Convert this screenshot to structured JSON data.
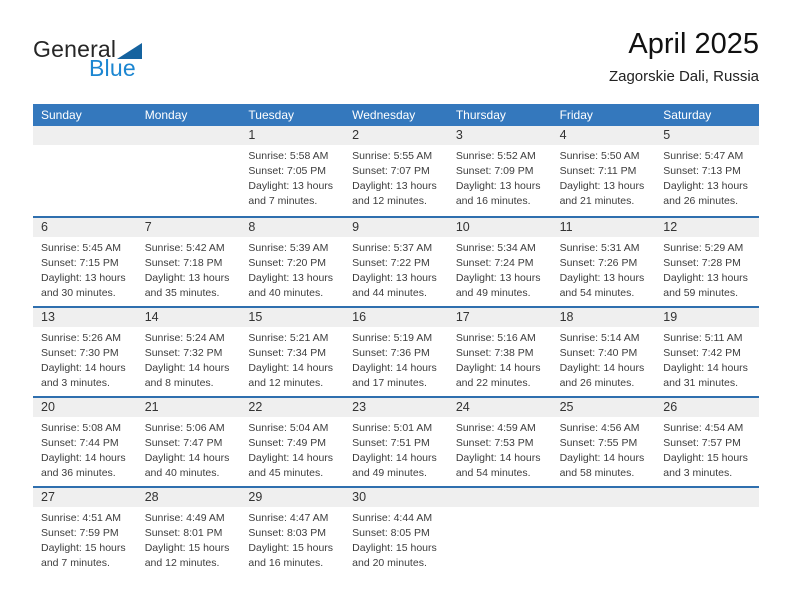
{
  "logo": {
    "general": "General",
    "blue": "Blue"
  },
  "header": {
    "title": "April 2025",
    "subtitle": "Zagorskie Dali, Russia"
  },
  "weekday_headers": [
    "Sunday",
    "Monday",
    "Tuesday",
    "Wednesday",
    "Thursday",
    "Friday",
    "Saturday"
  ],
  "colors": {
    "header_bg": "#3478bd",
    "row_separator": "#2f6fae",
    "day_band_bg": "#efefef",
    "logo_blue": "#1c86d1",
    "logo_triangle": "#15639f"
  },
  "weeks": [
    [
      {
        "day": "",
        "lines": []
      },
      {
        "day": "",
        "lines": []
      },
      {
        "day": "1",
        "lines": [
          "Sunrise: 5:58 AM",
          "Sunset: 7:05 PM",
          "Daylight: 13 hours",
          "and 7 minutes."
        ]
      },
      {
        "day": "2",
        "lines": [
          "Sunrise: 5:55 AM",
          "Sunset: 7:07 PM",
          "Daylight: 13 hours",
          "and 12 minutes."
        ]
      },
      {
        "day": "3",
        "lines": [
          "Sunrise: 5:52 AM",
          "Sunset: 7:09 PM",
          "Daylight: 13 hours",
          "and 16 minutes."
        ]
      },
      {
        "day": "4",
        "lines": [
          "Sunrise: 5:50 AM",
          "Sunset: 7:11 PM",
          "Daylight: 13 hours",
          "and 21 minutes."
        ]
      },
      {
        "day": "5",
        "lines": [
          "Sunrise: 5:47 AM",
          "Sunset: 7:13 PM",
          "Daylight: 13 hours",
          "and 26 minutes."
        ]
      }
    ],
    [
      {
        "day": "6",
        "lines": [
          "Sunrise: 5:45 AM",
          "Sunset: 7:15 PM",
          "Daylight: 13 hours",
          "and 30 minutes."
        ]
      },
      {
        "day": "7",
        "lines": [
          "Sunrise: 5:42 AM",
          "Sunset: 7:18 PM",
          "Daylight: 13 hours",
          "and 35 minutes."
        ]
      },
      {
        "day": "8",
        "lines": [
          "Sunrise: 5:39 AM",
          "Sunset: 7:20 PM",
          "Daylight: 13 hours",
          "and 40 minutes."
        ]
      },
      {
        "day": "9",
        "lines": [
          "Sunrise: 5:37 AM",
          "Sunset: 7:22 PM",
          "Daylight: 13 hours",
          "and 44 minutes."
        ]
      },
      {
        "day": "10",
        "lines": [
          "Sunrise: 5:34 AM",
          "Sunset: 7:24 PM",
          "Daylight: 13 hours",
          "and 49 minutes."
        ]
      },
      {
        "day": "11",
        "lines": [
          "Sunrise: 5:31 AM",
          "Sunset: 7:26 PM",
          "Daylight: 13 hours",
          "and 54 minutes."
        ]
      },
      {
        "day": "12",
        "lines": [
          "Sunrise: 5:29 AM",
          "Sunset: 7:28 PM",
          "Daylight: 13 hours",
          "and 59 minutes."
        ]
      }
    ],
    [
      {
        "day": "13",
        "lines": [
          "Sunrise: 5:26 AM",
          "Sunset: 7:30 PM",
          "Daylight: 14 hours",
          "and 3 minutes."
        ]
      },
      {
        "day": "14",
        "lines": [
          "Sunrise: 5:24 AM",
          "Sunset: 7:32 PM",
          "Daylight: 14 hours",
          "and 8 minutes."
        ]
      },
      {
        "day": "15",
        "lines": [
          "Sunrise: 5:21 AM",
          "Sunset: 7:34 PM",
          "Daylight: 14 hours",
          "and 12 minutes."
        ]
      },
      {
        "day": "16",
        "lines": [
          "Sunrise: 5:19 AM",
          "Sunset: 7:36 PM",
          "Daylight: 14 hours",
          "and 17 minutes."
        ]
      },
      {
        "day": "17",
        "lines": [
          "Sunrise: 5:16 AM",
          "Sunset: 7:38 PM",
          "Daylight: 14 hours",
          "and 22 minutes."
        ]
      },
      {
        "day": "18",
        "lines": [
          "Sunrise: 5:14 AM",
          "Sunset: 7:40 PM",
          "Daylight: 14 hours",
          "and 26 minutes."
        ]
      },
      {
        "day": "19",
        "lines": [
          "Sunrise: 5:11 AM",
          "Sunset: 7:42 PM",
          "Daylight: 14 hours",
          "and 31 minutes."
        ]
      }
    ],
    [
      {
        "day": "20",
        "lines": [
          "Sunrise: 5:08 AM",
          "Sunset: 7:44 PM",
          "Daylight: 14 hours",
          "and 36 minutes."
        ]
      },
      {
        "day": "21",
        "lines": [
          "Sunrise: 5:06 AM",
          "Sunset: 7:47 PM",
          "Daylight: 14 hours",
          "and 40 minutes."
        ]
      },
      {
        "day": "22",
        "lines": [
          "Sunrise: 5:04 AM",
          "Sunset: 7:49 PM",
          "Daylight: 14 hours",
          "and 45 minutes."
        ]
      },
      {
        "day": "23",
        "lines": [
          "Sunrise: 5:01 AM",
          "Sunset: 7:51 PM",
          "Daylight: 14 hours",
          "and 49 minutes."
        ]
      },
      {
        "day": "24",
        "lines": [
          "Sunrise: 4:59 AM",
          "Sunset: 7:53 PM",
          "Daylight: 14 hours",
          "and 54 minutes."
        ]
      },
      {
        "day": "25",
        "lines": [
          "Sunrise: 4:56 AM",
          "Sunset: 7:55 PM",
          "Daylight: 14 hours",
          "and 58 minutes."
        ]
      },
      {
        "day": "26",
        "lines": [
          "Sunrise: 4:54 AM",
          "Sunset: 7:57 PM",
          "Daylight: 15 hours",
          "and 3 minutes."
        ]
      }
    ],
    [
      {
        "day": "27",
        "lines": [
          "Sunrise: 4:51 AM",
          "Sunset: 7:59 PM",
          "Daylight: 15 hours",
          "and 7 minutes."
        ]
      },
      {
        "day": "28",
        "lines": [
          "Sunrise: 4:49 AM",
          "Sunset: 8:01 PM",
          "Daylight: 15 hours",
          "and 12 minutes."
        ]
      },
      {
        "day": "29",
        "lines": [
          "Sunrise: 4:47 AM",
          "Sunset: 8:03 PM",
          "Daylight: 15 hours",
          "and 16 minutes."
        ]
      },
      {
        "day": "30",
        "lines": [
          "Sunrise: 4:44 AM",
          "Sunset: 8:05 PM",
          "Daylight: 15 hours",
          "and 20 minutes."
        ]
      },
      {
        "day": "",
        "lines": []
      },
      {
        "day": "",
        "lines": []
      },
      {
        "day": "",
        "lines": []
      }
    ]
  ]
}
